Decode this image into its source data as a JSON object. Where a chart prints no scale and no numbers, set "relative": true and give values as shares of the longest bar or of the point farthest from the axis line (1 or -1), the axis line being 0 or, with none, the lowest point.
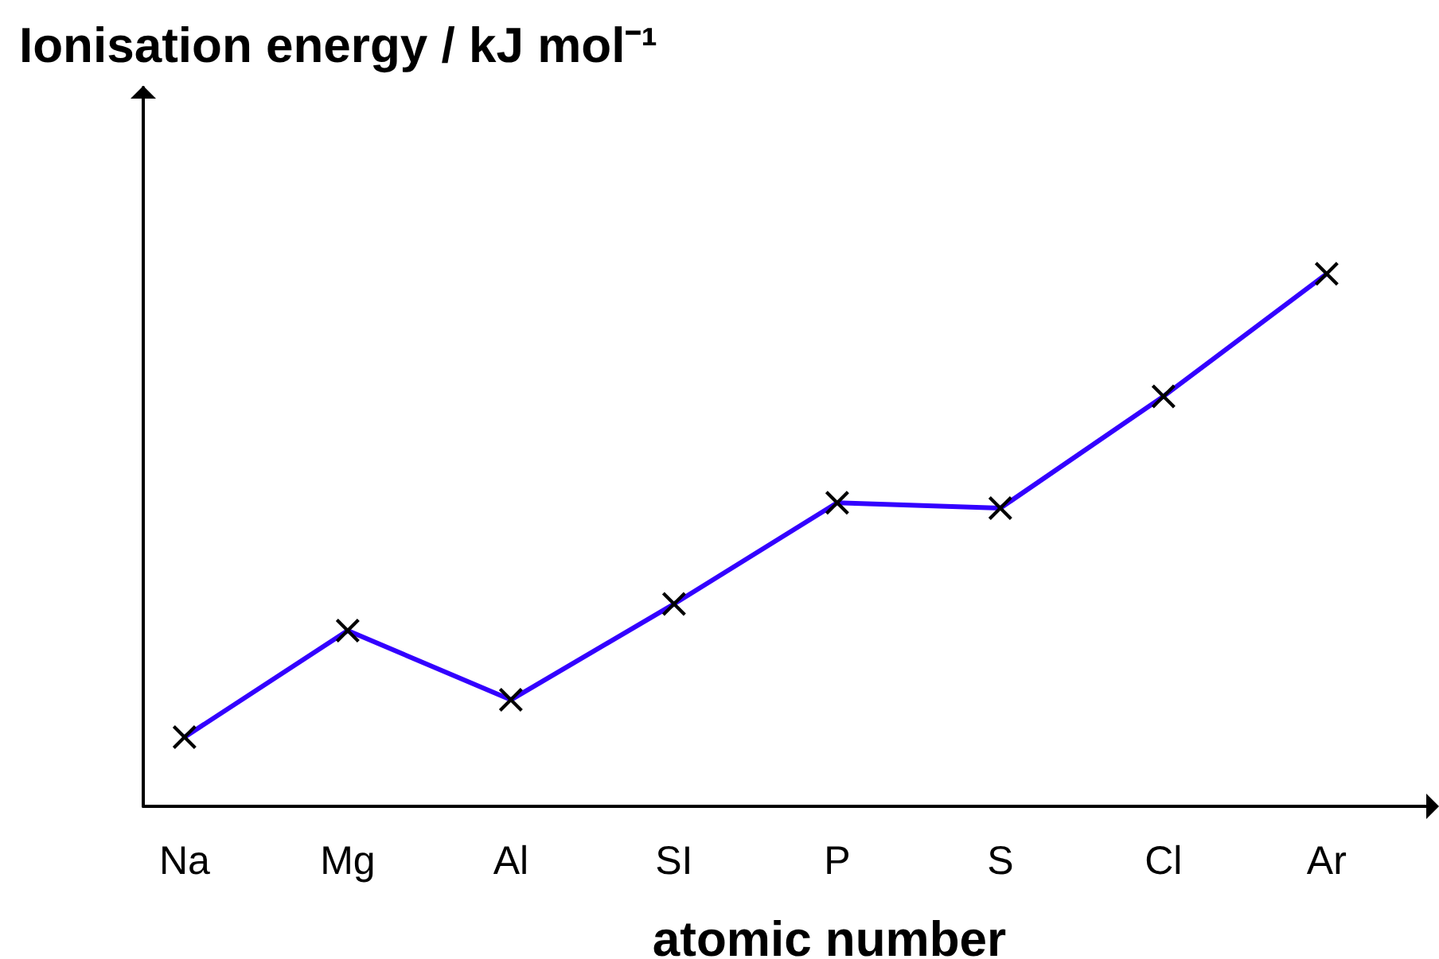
{
  "chart_data": {
    "type": "line",
    "xlabel": "atomic number",
    "ylabel": "Ionisation energy / kJ mol⁻¹",
    "categories": [
      "Na",
      "Mg",
      "Al",
      "SI",
      "P",
      "S",
      "Cl",
      "Ar"
    ],
    "relative": true,
    "marker": "cross",
    "line_style": "solid",
    "series": [
      {
        "color": "#3300ff",
        "values": [
          0.13,
          0.33,
          0.2,
          0.38,
          0.57,
          0.56,
          0.77,
          1
        ]
      }
    ]
  }
}
